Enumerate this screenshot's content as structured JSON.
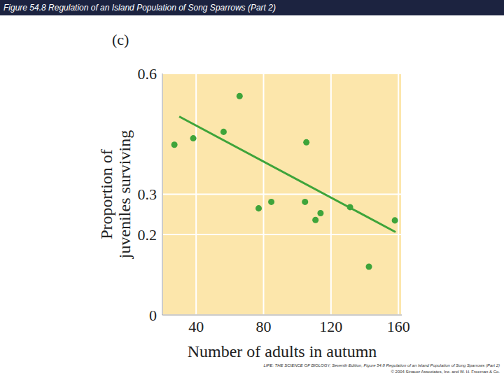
{
  "chart_data": {
    "type": "scatter",
    "title": "Figure 54.8  Regulation of an Island Population of Song Sparrows (Part 2)",
    "panel_label": "(c)",
    "xlabel": "Number of adults in autumn",
    "ylabel": "Proportion of juveniles surviving",
    "x": [
      27.1,
      38.3,
      56.3,
      65.8,
      77.1,
      84.6,
      105.4,
      104.6,
      113.8,
      110.8,
      131.3,
      142.5,
      157.9
    ],
    "values": [
      0.423,
      0.439,
      0.455,
      0.544,
      0.265,
      0.281,
      0.429,
      0.281,
      0.253,
      0.236,
      0.268,
      0.12,
      0.235
    ],
    "color": "#3ea43a",
    "marker": "circle",
    "trend_line": {
      "x": [
        30,
        158.3
      ],
      "y": [
        0.493,
        0.206
      ],
      "color": "#3ea43a"
    },
    "xlim": [
      20,
      162
    ],
    "xticks": [
      40,
      80,
      120,
      160
    ],
    "ylim": [
      0,
      0.6
    ],
    "yticks": [
      0,
      0.2,
      0.3,
      0.6
    ],
    "grid": true,
    "credits": [
      "LIFE: THE SCIENCE OF BIOLOGY, Seventh Edition, Figure 54.8 Regulation of an Island Population of Song Sparrows (Part 2)",
      "© 2004 Sinauer Associates, Inc. and W. H. Freeman & Co."
    ]
  }
}
